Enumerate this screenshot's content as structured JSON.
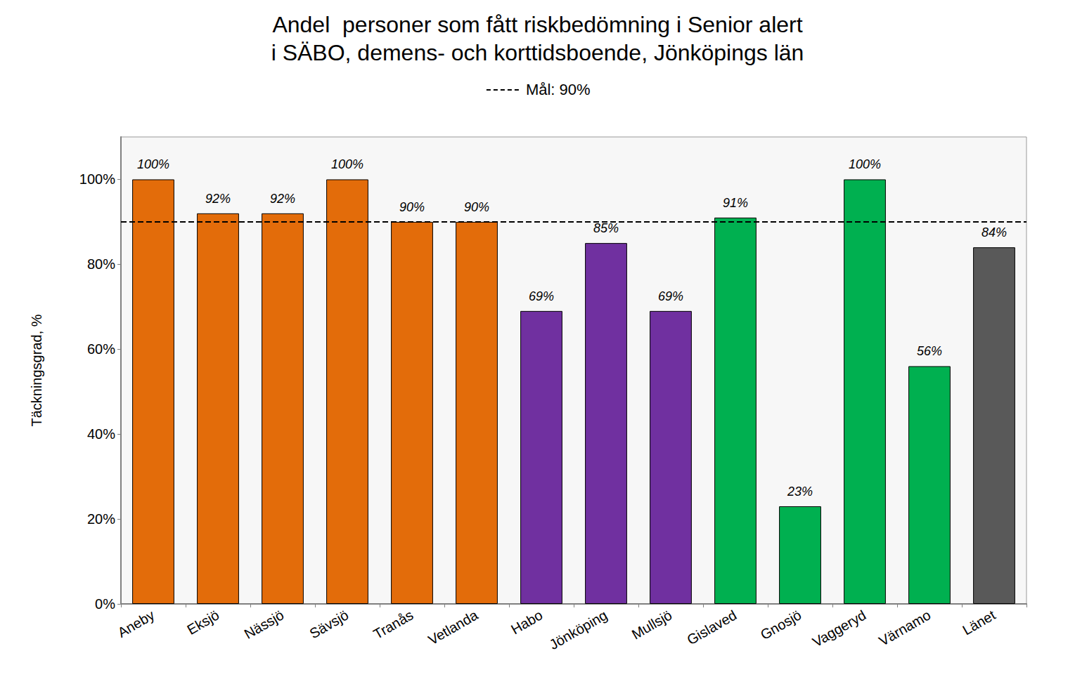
{
  "chart_data": {
    "type": "bar",
    "title": "Andel  personer som fått riskbedömning i Senior alert\ni SÄBO, demens- och korttidsboende, Jönköpings län",
    "y_label": "Täckningsgrad, %",
    "categories": [
      "Aneby",
      "Eksjö",
      "Nässjö",
      "Sävsjö",
      "Tranås",
      "Vetlanda",
      "Habo",
      "Jönköping",
      "Mullsjö",
      "Gislaved",
      "Gnosjö",
      "Vaggeryd",
      "Värnamo",
      "Länet"
    ],
    "values": [
      100,
      92,
      92,
      100,
      90,
      90,
      69,
      85,
      69,
      91,
      23,
      100,
      56,
      84
    ],
    "value_labels": [
      "100%",
      "92%",
      "92%",
      "100%",
      "90%",
      "90%",
      "69%",
      "85%",
      "69%",
      "91%",
      "23%",
      "100%",
      "56%",
      "84%"
    ],
    "colors": [
      "#e36c0a",
      "#e36c0a",
      "#e36c0a",
      "#e36c0a",
      "#e36c0a",
      "#e36c0a",
      "#7030a0",
      "#7030a0",
      "#7030a0",
      "#00b050",
      "#00b050",
      "#00b050",
      "#00b050",
      "#595959"
    ],
    "data_labels": true,
    "annotations": [
      {
        "type": "hline",
        "y": 90,
        "label": "Mål: 90%",
        "line_style": "dashed",
        "color": "#000000"
      }
    ],
    "ylim": [
      0,
      110
    ],
    "yticks": [
      {
        "value": 0,
        "label": "0%"
      },
      {
        "value": 20,
        "label": "20%"
      },
      {
        "value": 40,
        "label": "40%"
      },
      {
        "value": 60,
        "label": "60%"
      },
      {
        "value": 80,
        "label": "80%"
      },
      {
        "value": 100,
        "label": "100%"
      }
    ],
    "grid": false
  }
}
